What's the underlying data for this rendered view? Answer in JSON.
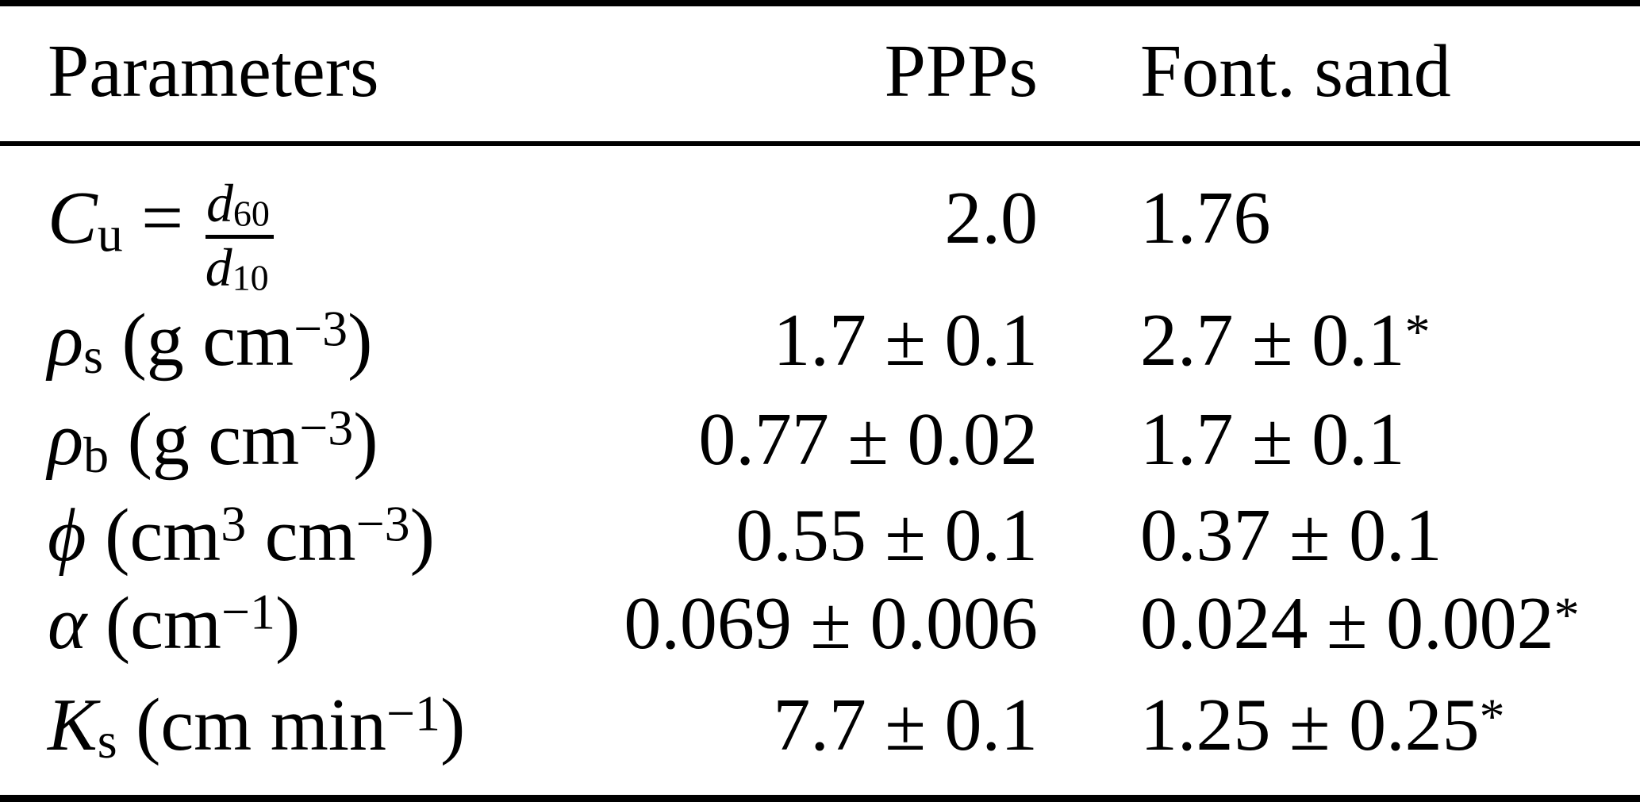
{
  "colors": {
    "text": "#000000",
    "background": "#ffffff",
    "rule": "#000000"
  },
  "table": {
    "header": {
      "parameters": "Parameters",
      "ppps": "PPPs",
      "font_sand": "Font. sand"
    },
    "rows": [
      {
        "label": {
          "sym": "C",
          "sub": "u",
          "eq": " = ",
          "frac": {
            "num_sym": "d",
            "num_sub": "60",
            "den_sym": "d",
            "den_sub": "10"
          }
        },
        "ppps": {
          "main": "2.0"
        },
        "font_sand": {
          "main": "1.76"
        }
      },
      {
        "label": {
          "sym": "ρ",
          "sub": "s",
          "unit_open": " (g cm",
          "unit_sup": "−3",
          "unit_close": ")"
        },
        "ppps": {
          "main": "1.7 ± 0.1"
        },
        "font_sand": {
          "main": "2.7 ± 0.1",
          "star": "*"
        }
      },
      {
        "label": {
          "sym": "ρ",
          "sub": "b",
          "unit_open": " (g cm",
          "unit_sup": "−3",
          "unit_close": ")"
        },
        "ppps": {
          "main": "0.77 ± 0.02"
        },
        "font_sand": {
          "main": "1.7 ± 0.1"
        }
      },
      {
        "label": {
          "sym": "ϕ",
          "unit_open": " (cm",
          "unit_sup1": "3",
          "unit_mid": " cm",
          "unit_sup": "−3",
          "unit_close": ")"
        },
        "ppps": {
          "main": "0.55 ± 0.1"
        },
        "font_sand": {
          "main": "0.37 ± 0.1"
        }
      },
      {
        "label": {
          "sym": "α",
          "unit_open": " (cm",
          "unit_sup": "−1",
          "unit_close": ")"
        },
        "ppps": {
          "main": "0.069 ± 0.006"
        },
        "font_sand": {
          "main": "0.024 ± 0.002",
          "star": "*"
        }
      },
      {
        "label": {
          "sym": "K",
          "sub": "s",
          "unit_open": " (cm min",
          "unit_sup": "−1",
          "unit_close": ")"
        },
        "ppps": {
          "main": "7.7 ± 0.1"
        },
        "font_sand": {
          "main": "1.25 ± 0.25",
          "star": "*"
        }
      }
    ]
  }
}
